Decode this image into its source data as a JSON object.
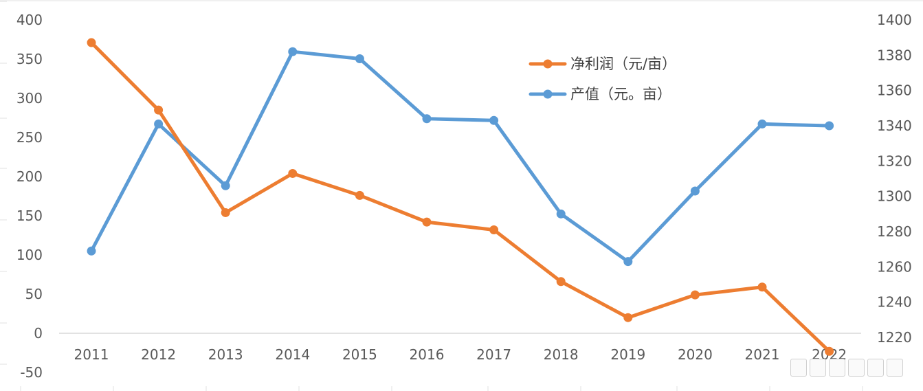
{
  "chart_data": {
    "type": "line",
    "title": "",
    "categories": [
      "2011",
      "2012",
      "2013",
      "2014",
      "2015",
      "2016",
      "2017",
      "2018",
      "2019",
      "2020",
      "2021",
      "2022"
    ],
    "y_left": {
      "min": -50,
      "max": 400,
      "ticks": [
        "-50",
        "0",
        "50",
        "100",
        "150",
        "200",
        "250",
        "300",
        "350",
        "400"
      ]
    },
    "y_right": {
      "min": 1220,
      "max": 1400,
      "ticks": [
        "1220",
        "1240",
        "1260",
        "1280",
        "1300",
        "1320",
        "1340",
        "1360",
        "1380",
        "1400"
      ]
    },
    "series": [
      {
        "name": "净利润（元/亩）",
        "axis": "left",
        "color": "#ED7D31",
        "values": [
          371,
          285,
          154,
          204,
          176,
          142,
          132,
          66,
          20,
          49,
          59,
          -23
        ]
      },
      {
        "name": "产值（元。亩）",
        "axis": "right",
        "color": "#5B9BD5",
        "values": [
          1269,
          1341,
          1306,
          1382,
          1378,
          1344,
          1343,
          1290,
          1263,
          1303,
          1341,
          1340
        ]
      }
    ],
    "legend": "top-right",
    "grid": false
  }
}
